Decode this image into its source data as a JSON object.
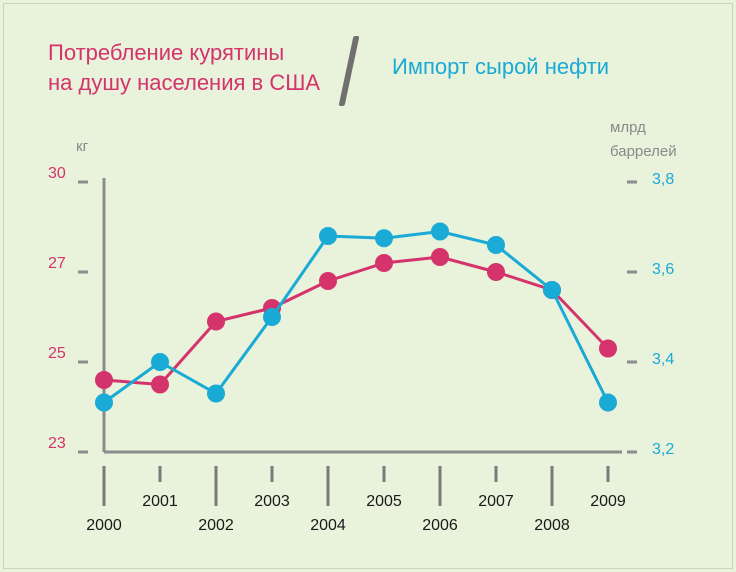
{
  "chart_data": {
    "type": "line",
    "title_left": [
      "Потребление курятины",
      "на душу населения в США"
    ],
    "title_right": "Импорт сырой нефти",
    "unit_left": "кг",
    "unit_right": [
      "млрд",
      "баррелей"
    ],
    "x": [
      "2000",
      "2001",
      "2002",
      "2003",
      "2004",
      "2005",
      "2006",
      "2007",
      "2008",
      "2009"
    ],
    "y_left": {
      "ticks": [
        "30",
        "27",
        "25",
        "23"
      ],
      "tick_values": [
        30,
        27,
        25,
        23
      ]
    },
    "y_right": {
      "ticks": [
        "3,8",
        "3,6",
        "3,4",
        "3,2"
      ],
      "tick_values": [
        3.8,
        3.6,
        3.4,
        3.2
      ]
    },
    "series": [
      {
        "axis": "left",
        "values": [
          24.6,
          24.5,
          25.9,
          26.2,
          26.8,
          27.3,
          27.5,
          27.0,
          26.6,
          25.3
        ]
      },
      {
        "axis": "right",
        "values": [
          3.31,
          3.4,
          3.33,
          3.5,
          3.68,
          3.675,
          3.69,
          3.66,
          3.56,
          3.31
        ]
      }
    ],
    "colors": {
      "left": "#d4336b",
      "right": "#1aaad6",
      "axis": "#8c8c8c"
    },
    "grid": false
  }
}
